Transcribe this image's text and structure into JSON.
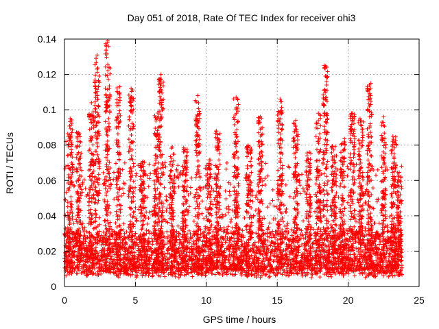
{
  "chart_data": {
    "type": "scatter",
    "title": "Day 051 of 2018, Rate Of TEC Index for receiver ohi3",
    "xlabel": "GPS time / hours",
    "ylabel": "ROTI / TECUs",
    "xlim": [
      0,
      25
    ],
    "ylim": [
      0,
      0.14
    ],
    "xticks": [
      0,
      5,
      10,
      15,
      20,
      25
    ],
    "yticks": [
      0,
      0.02,
      0.04,
      0.06,
      0.08,
      0.1,
      0.12,
      0.14
    ],
    "xtick_labels": [
      "0",
      "5",
      "10",
      "15",
      "20",
      "25"
    ],
    "ytick_labels": [
      "0",
      "0.02",
      "0.04",
      "0.06",
      "0.08",
      "0.1",
      "0.12",
      "0.14"
    ],
    "grid": true,
    "marker": "+",
    "color": "#ff0000",
    "x_data_range": [
      0.0,
      23.8
    ],
    "baseline_band": [
      0.005,
      0.03
    ],
    "notable_points": [
      {
        "x": 3.05,
        "y": 0.139
      },
      {
        "x": 3.1,
        "y": 0.136
      },
      {
        "x": 2.3,
        "y": 0.131
      },
      {
        "x": 2.3,
        "y": 0.123
      },
      {
        "x": 6.8,
        "y": 0.12
      },
      {
        "x": 18.3,
        "y": 0.125
      },
      {
        "x": 18.4,
        "y": 0.119
      },
      {
        "x": 21.6,
        "y": 0.115
      },
      {
        "x": 4.7,
        "y": 0.112
      },
      {
        "x": 3.9,
        "y": 0.113
      },
      {
        "x": 6.7,
        "y": 0.11
      },
      {
        "x": 9.4,
        "y": 0.108
      },
      {
        "x": 12.1,
        "y": 0.107
      },
      {
        "x": 15.2,
        "y": 0.106
      },
      {
        "x": 2.2,
        "y": 0.107
      },
      {
        "x": 1.9,
        "y": 0.104
      },
      {
        "x": 3.7,
        "y": 0.104
      },
      {
        "x": 21.5,
        "y": 0.102
      },
      {
        "x": 3.0,
        "y": 0.101
      },
      {
        "x": 20.3,
        "y": 0.098
      },
      {
        "x": 17.9,
        "y": 0.098
      },
      {
        "x": 0.4,
        "y": 0.095
      },
      {
        "x": 13.8,
        "y": 0.096
      },
      {
        "x": 22.5,
        "y": 0.096
      },
      {
        "x": 16.3,
        "y": 0.094
      },
      {
        "x": 12.2,
        "y": 0.093
      },
      {
        "x": 23.4,
        "y": 0.08
      },
      {
        "x": 0.1,
        "y": 0.082
      },
      {
        "x": 10.7,
        "y": 0.088
      },
      {
        "x": 7.6,
        "y": 0.079
      }
    ],
    "activity_bursts": [
      {
        "center": 0.4,
        "peak": 0.095
      },
      {
        "center": 1.0,
        "peak": 0.088
      },
      {
        "center": 1.9,
        "peak": 0.104
      },
      {
        "center": 2.3,
        "peak": 0.131
      },
      {
        "center": 3.05,
        "peak": 0.139
      },
      {
        "center": 3.8,
        "peak": 0.113
      },
      {
        "center": 4.7,
        "peak": 0.112
      },
      {
        "center": 5.5,
        "peak": 0.072
      },
      {
        "center": 6.5,
        "peak": 0.1
      },
      {
        "center": 6.8,
        "peak": 0.12
      },
      {
        "center": 7.6,
        "peak": 0.079
      },
      {
        "center": 8.5,
        "peak": 0.08
      },
      {
        "center": 9.4,
        "peak": 0.108
      },
      {
        "center": 10.2,
        "peak": 0.072
      },
      {
        "center": 10.8,
        "peak": 0.088
      },
      {
        "center": 12.1,
        "peak": 0.107
      },
      {
        "center": 13.0,
        "peak": 0.08
      },
      {
        "center": 13.8,
        "peak": 0.096
      },
      {
        "center": 15.2,
        "peak": 0.106
      },
      {
        "center": 16.3,
        "peak": 0.094
      },
      {
        "center": 17.2,
        "peak": 0.076
      },
      {
        "center": 17.9,
        "peak": 0.098
      },
      {
        "center": 18.4,
        "peak": 0.125
      },
      {
        "center": 19.0,
        "peak": 0.08
      },
      {
        "center": 19.6,
        "peak": 0.084
      },
      {
        "center": 20.3,
        "peak": 0.098
      },
      {
        "center": 20.9,
        "peak": 0.095
      },
      {
        "center": 21.5,
        "peak": 0.115
      },
      {
        "center": 22.5,
        "peak": 0.096
      },
      {
        "center": 23.2,
        "peak": 0.085
      },
      {
        "center": 23.6,
        "peak": 0.065
      }
    ]
  }
}
